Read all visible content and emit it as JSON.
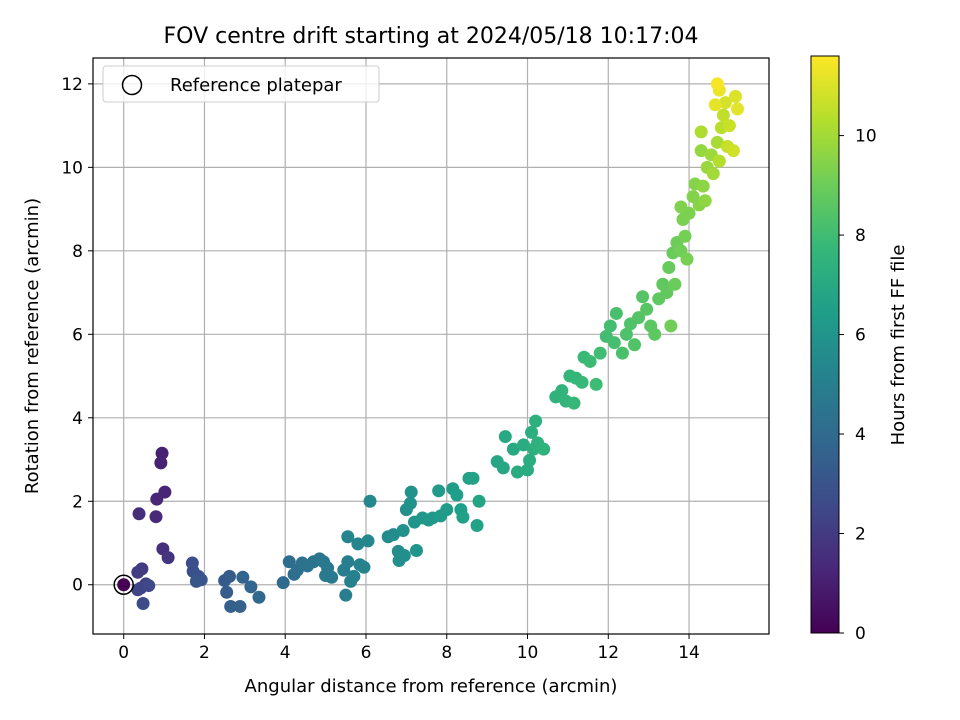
{
  "chart_data": {
    "type": "scatter",
    "title": "FOV centre drift starting at 2024/05/18 10:17:04",
    "xlabel": "Angular distance from reference (arcmin)",
    "ylabel": "Rotation from reference (arcmin)",
    "xlim": [
      -0.76,
      15.98
    ],
    "ylim": [
      -1.18,
      12.62
    ],
    "xticks": [
      0,
      2,
      4,
      6,
      8,
      10,
      12,
      14
    ],
    "yticks": [
      0,
      2,
      4,
      6,
      8,
      10,
      12
    ],
    "grid": true,
    "legend": {
      "position": "top-left",
      "entries": [
        "Reference platepar"
      ]
    },
    "reference_point": [
      0,
      0
    ],
    "colorbar": {
      "label": "Hours from first FF file",
      "colormap": "viridis",
      "range": [
        0,
        11.6
      ],
      "ticks": [
        0,
        2,
        4,
        6,
        8,
        10
      ]
    },
    "points": [
      [
        0.95,
        3.15,
        1.05
      ],
      [
        0.92,
        2.92,
        1.1
      ],
      [
        1.02,
        2.22,
        1.2
      ],
      [
        0.82,
        2.05,
        1.25
      ],
      [
        0.8,
        1.63,
        1.35
      ],
      [
        0.38,
        1.7,
        1.45
      ],
      [
        0.97,
        0.86,
        1.6
      ],
      [
        1.1,
        0.65,
        1.8
      ],
      [
        0.45,
        0.38,
        2.0
      ],
      [
        0.35,
        0.3,
        2.1
      ],
      [
        0.55,
        0.02,
        2.2
      ],
      [
        0.42,
        -0.08,
        2.3
      ],
      [
        0.35,
        -0.12,
        2.4
      ],
      [
        0.62,
        -0.02,
        2.5
      ],
      [
        0.48,
        -0.45,
        2.6
      ],
      [
        1.7,
        0.52,
        2.75
      ],
      [
        1.72,
        0.32,
        2.85
      ],
      [
        1.85,
        0.2,
        2.95
      ],
      [
        1.92,
        0.12,
        3.05
      ],
      [
        1.8,
        0.08,
        3.1
      ],
      [
        2.5,
        0.1,
        3.25
      ],
      [
        2.62,
        0.2,
        3.35
      ],
      [
        2.55,
        -0.18,
        3.45
      ],
      [
        2.65,
        -0.52,
        3.5
      ],
      [
        2.88,
        -0.52,
        3.6
      ],
      [
        2.95,
        0.18,
        3.7
      ],
      [
        3.15,
        -0.05,
        3.8
      ],
      [
        3.35,
        -0.3,
        3.85
      ],
      [
        3.95,
        0.05,
        4.0
      ],
      [
        4.1,
        0.55,
        4.1
      ],
      [
        4.22,
        0.25,
        4.15
      ],
      [
        4.3,
        0.35,
        4.25
      ],
      [
        4.42,
        0.52,
        4.3
      ],
      [
        4.55,
        0.45,
        4.4
      ],
      [
        4.7,
        0.55,
        4.45
      ],
      [
        4.85,
        0.62,
        4.55
      ],
      [
        4.95,
        0.55,
        4.6
      ],
      [
        5.05,
        0.4,
        4.65
      ],
      [
        5.0,
        0.22,
        4.7
      ],
      [
        5.15,
        0.18,
        4.75
      ],
      [
        5.45,
        0.35,
        4.9
      ],
      [
        5.5,
        -0.25,
        4.95
      ],
      [
        5.55,
        0.55,
        5.0
      ],
      [
        5.62,
        0.08,
        5.05
      ],
      [
        5.7,
        0.2,
        5.1
      ],
      [
        5.85,
        0.48,
        5.15
      ],
      [
        5.95,
        0.42,
        5.2
      ],
      [
        5.55,
        1.15,
        5.25
      ],
      [
        5.8,
        0.98,
        5.3
      ],
      [
        6.05,
        1.05,
        5.35
      ],
      [
        6.1,
        2.0,
        5.45
      ],
      [
        6.55,
        1.15,
        5.55
      ],
      [
        6.68,
        1.2,
        5.6
      ],
      [
        6.8,
        0.8,
        5.65
      ],
      [
        6.82,
        0.58,
        5.7
      ],
      [
        6.95,
        0.7,
        5.75
      ],
      [
        6.92,
        1.3,
        5.8
      ],
      [
        7.0,
        1.8,
        5.85
      ],
      [
        7.12,
        2.22,
        5.9
      ],
      [
        7.1,
        1.95,
        5.95
      ],
      [
        7.2,
        1.5,
        6.0
      ],
      [
        7.25,
        0.82,
        6.05
      ],
      [
        7.4,
        1.6,
        6.1
      ],
      [
        7.55,
        1.55,
        6.15
      ],
      [
        7.65,
        1.6,
        6.2
      ],
      [
        7.8,
        2.25,
        6.25
      ],
      [
        7.85,
        1.65,
        6.3
      ],
      [
        8.0,
        1.8,
        6.35
      ],
      [
        8.15,
        2.3,
        6.4
      ],
      [
        8.25,
        2.15,
        6.45
      ],
      [
        8.35,
        1.8,
        6.5
      ],
      [
        8.4,
        1.62,
        6.55
      ],
      [
        8.55,
        2.55,
        6.6
      ],
      [
        8.65,
        2.55,
        6.65
      ],
      [
        8.75,
        1.42,
        6.7
      ],
      [
        8.8,
        2.0,
        6.75
      ],
      [
        9.25,
        2.95,
        6.85
      ],
      [
        9.4,
        2.8,
        6.9
      ],
      [
        9.45,
        3.55,
        6.95
      ],
      [
        9.65,
        3.25,
        7.0
      ],
      [
        9.75,
        2.7,
        7.05
      ],
      [
        9.9,
        3.35,
        7.1
      ],
      [
        10.0,
        2.75,
        7.15
      ],
      [
        10.05,
        2.98,
        7.2
      ],
      [
        10.1,
        3.65,
        7.25
      ],
      [
        10.15,
        3.25,
        7.3
      ],
      [
        10.2,
        3.92,
        7.35
      ],
      [
        10.25,
        3.4,
        7.4
      ],
      [
        10.4,
        3.25,
        7.45
      ],
      [
        10.7,
        4.5,
        7.5
      ],
      [
        10.85,
        4.65,
        7.55
      ],
      [
        10.95,
        4.4,
        7.6
      ],
      [
        11.05,
        5.0,
        7.65
      ],
      [
        11.2,
        4.95,
        7.7
      ],
      [
        11.15,
        4.35,
        7.75
      ],
      [
        11.35,
        4.85,
        7.8
      ],
      [
        11.4,
        5.45,
        7.85
      ],
      [
        11.55,
        5.35,
        7.9
      ],
      [
        11.7,
        4.8,
        7.95
      ],
      [
        11.8,
        5.55,
        8.0
      ],
      [
        11.95,
        5.95,
        8.05
      ],
      [
        12.05,
        6.2,
        8.1
      ],
      [
        12.15,
        5.8,
        8.15
      ],
      [
        12.2,
        6.5,
        8.2
      ],
      [
        12.35,
        5.55,
        8.25
      ],
      [
        12.45,
        6.0,
        8.3
      ],
      [
        12.55,
        6.25,
        8.35
      ],
      [
        12.65,
        5.75,
        8.4
      ],
      [
        12.75,
        6.4,
        8.45
      ],
      [
        12.85,
        6.9,
        8.5
      ],
      [
        12.95,
        6.6,
        8.55
      ],
      [
        13.05,
        6.2,
        8.6
      ],
      [
        13.15,
        6.0,
        8.65
      ],
      [
        13.25,
        6.85,
        8.7
      ],
      [
        13.35,
        7.2,
        8.75
      ],
      [
        13.45,
        7.0,
        8.8
      ],
      [
        13.5,
        7.6,
        8.85
      ],
      [
        13.6,
        7.95,
        8.9
      ],
      [
        13.65,
        7.2,
        8.95
      ],
      [
        13.7,
        8.2,
        9.0
      ],
      [
        13.55,
        6.2,
        9.05
      ],
      [
        13.8,
        8.0,
        9.1
      ],
      [
        13.9,
        8.35,
        9.15
      ],
      [
        13.95,
        7.8,
        9.2
      ],
      [
        13.85,
        8.75,
        9.25
      ],
      [
        14.0,
        8.9,
        9.3
      ],
      [
        13.8,
        9.05,
        9.35
      ],
      [
        14.1,
        9.3,
        9.4
      ],
      [
        14.15,
        9.6,
        9.45
      ],
      [
        14.25,
        9.1,
        9.5
      ],
      [
        14.35,
        9.55,
        9.6
      ],
      [
        14.4,
        9.2,
        9.65
      ],
      [
        14.3,
        10.4,
        9.75
      ],
      [
        14.45,
        10.0,
        9.8
      ],
      [
        14.55,
        10.3,
        9.9
      ],
      [
        14.6,
        9.85,
        10.0
      ],
      [
        14.7,
        10.6,
        10.1
      ],
      [
        14.3,
        10.85,
        10.2
      ],
      [
        14.75,
        10.15,
        10.3
      ],
      [
        14.8,
        10.95,
        10.4
      ],
      [
        14.85,
        11.25,
        10.5
      ],
      [
        14.95,
        10.5,
        10.6
      ],
      [
        15.0,
        11.0,
        10.7
      ],
      [
        15.1,
        10.4,
        10.8
      ],
      [
        14.9,
        11.55,
        10.9
      ],
      [
        15.15,
        11.7,
        11.0
      ],
      [
        15.2,
        11.4,
        11.1
      ],
      [
        14.65,
        11.5,
        11.2
      ],
      [
        14.75,
        11.85,
        11.3
      ],
      [
        14.7,
        12.0,
        11.5
      ]
    ]
  }
}
